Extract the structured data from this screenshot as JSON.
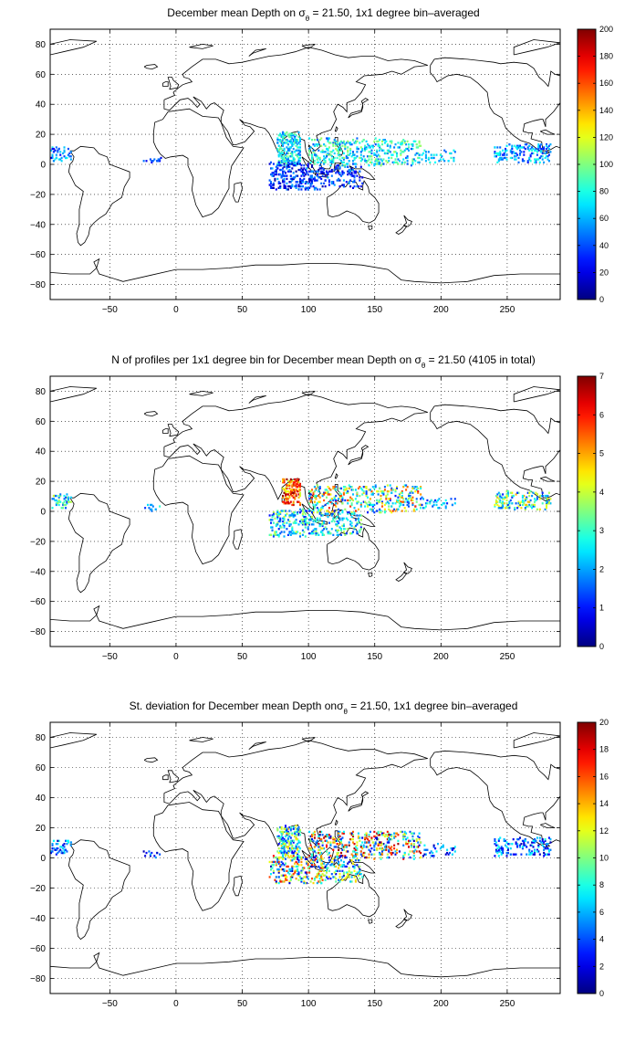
{
  "chart_data": [
    {
      "type": "heatmap",
      "title_parts": {
        "pre": "December mean Depth on ",
        "sym": "σ",
        "sub": "θ",
        "post": " = 21.50, 1x1 degree bin–averaged"
      },
      "xlim": [
        -95,
        290
      ],
      "ylim": [
        -90,
        90
      ],
      "xticks": [
        -50,
        0,
        50,
        100,
        150,
        200,
        250
      ],
      "yticks": [
        -80,
        -60,
        -40,
        -20,
        0,
        20,
        40,
        60,
        80
      ],
      "grid": true,
      "colormap": "jet",
      "clim": [
        0,
        200
      ],
      "cbticks": [
        0,
        20,
        40,
        60,
        80,
        100,
        120,
        140,
        160,
        180,
        200
      ],
      "regions": [
        {
          "lon": [
            -95,
            -80
          ],
          "lat": [
            3,
            12
          ],
          "lo": 20,
          "hi": 80,
          "n": 50
        },
        {
          "lon": [
            -25,
            -12
          ],
          "lat": [
            1,
            5
          ],
          "lo": 20,
          "hi": 50,
          "n": 14
        },
        {
          "lon": [
            76,
            93
          ],
          "lat": [
            0,
            22
          ],
          "lo": 40,
          "hi": 100,
          "n": 230
        },
        {
          "lon": [
            70,
            110
          ],
          "lat": [
            -16,
            2
          ],
          "lo": 5,
          "hi": 60,
          "n": 260
        },
        {
          "lon": [
            100,
            185
          ],
          "lat": [
            0,
            18
          ],
          "lo": 40,
          "hi": 110,
          "n": 420
        },
        {
          "lon": [
            185,
            210
          ],
          "lat": [
            2,
            10
          ],
          "lo": 40,
          "hi": 90,
          "n": 40
        },
        {
          "lon": [
            240,
            282
          ],
          "lat": [
            2,
            14
          ],
          "lo": 25,
          "hi": 85,
          "n": 170
        },
        {
          "lon": [
            110,
            140
          ],
          "lat": [
            -15,
            0
          ],
          "lo": 10,
          "hi": 60,
          "n": 110
        }
      ]
    },
    {
      "type": "heatmap",
      "title_parts": {
        "pre": "N of profiles per 1x1 degree bin for December mean Depth on ",
        "sym": "σ",
        "sub": "θ",
        "post": " = 21.50 (4105 in total)"
      },
      "xlim": [
        -95,
        290
      ],
      "ylim": [
        -90,
        90
      ],
      "xticks": [
        -50,
        0,
        50,
        100,
        150,
        200,
        250
      ],
      "yticks": [
        -80,
        -60,
        -40,
        -20,
        0,
        20,
        40,
        60,
        80
      ],
      "grid": true,
      "colormap": "jet",
      "clim": [
        0,
        7
      ],
      "cbticks": [
        0,
        1,
        2,
        3,
        4,
        5,
        6,
        7
      ],
      "regions": [
        {
          "lon": [
            -95,
            -80
          ],
          "lat": [
            3,
            12
          ],
          "lo": 1,
          "hi": 4,
          "n": 45
        },
        {
          "lon": [
            -25,
            -12
          ],
          "lat": [
            1,
            5
          ],
          "lo": 1,
          "hi": 3,
          "n": 12
        },
        {
          "lon": [
            80,
            93
          ],
          "lat": [
            5,
            22
          ],
          "lo": 4,
          "hi": 7,
          "n": 150
        },
        {
          "lon": [
            70,
            110
          ],
          "lat": [
            -16,
            2
          ],
          "lo": 1,
          "hi": 4,
          "n": 230
        },
        {
          "lon": [
            100,
            185
          ],
          "lat": [
            0,
            18
          ],
          "lo": 1,
          "hi": 6,
          "n": 400
        },
        {
          "lon": [
            185,
            210
          ],
          "lat": [
            2,
            10
          ],
          "lo": 1,
          "hi": 3,
          "n": 35
        },
        {
          "lon": [
            240,
            282
          ],
          "lat": [
            2,
            14
          ],
          "lo": 1,
          "hi": 5,
          "n": 160
        },
        {
          "lon": [
            110,
            140
          ],
          "lat": [
            -15,
            0
          ],
          "lo": 1,
          "hi": 4,
          "n": 110
        }
      ]
    },
    {
      "type": "heatmap",
      "title_parts": {
        "pre": "St. deviation for December mean Depth on",
        "sym": "σ",
        "sub": "θ",
        "post": " = 21.50, 1x1 degree bin–averaged"
      },
      "xlim": [
        -95,
        290
      ],
      "ylim": [
        -90,
        90
      ],
      "xticks": [
        -50,
        0,
        50,
        100,
        150,
        200,
        250
      ],
      "yticks": [
        -80,
        -60,
        -40,
        -20,
        0,
        20,
        40,
        60,
        80
      ],
      "grid": true,
      "colormap": "jet",
      "clim": [
        0,
        20
      ],
      "cbticks": [
        0,
        2,
        4,
        6,
        8,
        10,
        12,
        14,
        16,
        18,
        20
      ],
      "regions": [
        {
          "lon": [
            -95,
            -80
          ],
          "lat": [
            3,
            12
          ],
          "lo": 1,
          "hi": 8,
          "n": 45
        },
        {
          "lon": [
            -25,
            -12
          ],
          "lat": [
            1,
            5
          ],
          "lo": 1,
          "hi": 6,
          "n": 12
        },
        {
          "lon": [
            76,
            93
          ],
          "lat": [
            0,
            22
          ],
          "lo": 2,
          "hi": 14,
          "n": 200
        },
        {
          "lon": [
            70,
            110
          ],
          "lat": [
            -16,
            2
          ],
          "lo": 1,
          "hi": 18,
          "n": 240
        },
        {
          "lon": [
            100,
            185
          ],
          "lat": [
            0,
            18
          ],
          "lo": 1,
          "hi": 20,
          "n": 430
        },
        {
          "lon": [
            185,
            210
          ],
          "lat": [
            2,
            10
          ],
          "lo": 1,
          "hi": 8,
          "n": 35
        },
        {
          "lon": [
            240,
            282
          ],
          "lat": [
            2,
            14
          ],
          "lo": 1,
          "hi": 8,
          "n": 150
        },
        {
          "lon": [
            110,
            140
          ],
          "lat": [
            -15,
            0
          ],
          "lo": 1,
          "hi": 14,
          "n": 110
        }
      ]
    }
  ]
}
